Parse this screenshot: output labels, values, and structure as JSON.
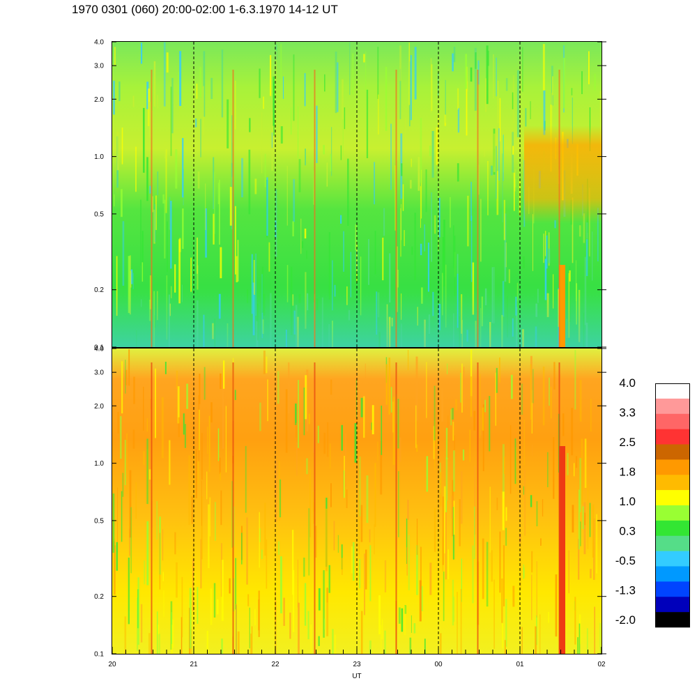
{
  "title": "1970 0301 (060) 20:00-02:00 1-6.3.1970  14-12 UT",
  "chart_data": {
    "type": "heatmap",
    "title": "1970 0301 (060) 20:00-02:00 1-6.3.1970  14-12 UT",
    "xlabel": "UT",
    "x_ticks": [
      "20",
      "21",
      "22",
      "23",
      "00",
      "01",
      "02"
    ],
    "y_ticks": [
      "0.1",
      "0.2",
      "0.5",
      "1.0",
      "2.0",
      "3.0",
      "4.0"
    ],
    "y_tick_values": [
      0.1,
      0.2,
      0.5,
      1.0,
      2.0,
      3.0,
      4.0
    ],
    "ylim": [
      0.1,
      4.0
    ],
    "y_scale": "log",
    "grid": "dashed vertical lines at each hour",
    "panels": [
      {
        "name": "upper",
        "dominant_colors": [
          "#33e633",
          "#99ff33",
          "#ffff00",
          "#33ccff"
        ],
        "notes": "mostly green with yellow; orange patch near 01-02 UT above 0.5"
      },
      {
        "name": "lower",
        "dominant_colors": [
          "#ff9900",
          "#ffbb00",
          "#ffff00",
          "#99ff33"
        ],
        "notes": "mostly orange/yellow; red vertical streak near 01:30 UT"
      }
    ],
    "colorbar": {
      "labels": [
        "4.0",
        "3.3",
        "2.5",
        "1.8",
        "1.0",
        "0.3",
        "-0.5",
        "-1.3",
        "-2.0"
      ],
      "colors": [
        "#ffffff",
        "#ff9999",
        "#ff6666",
        "#ff3333",
        "#cc6600",
        "#ff9900",
        "#ffbb00",
        "#ffff00",
        "#99ff33",
        "#33e633",
        "#55dd88",
        "#33ccff",
        "#0099ff",
        "#0044ff",
        "#0000bb",
        "#000000"
      ]
    }
  }
}
